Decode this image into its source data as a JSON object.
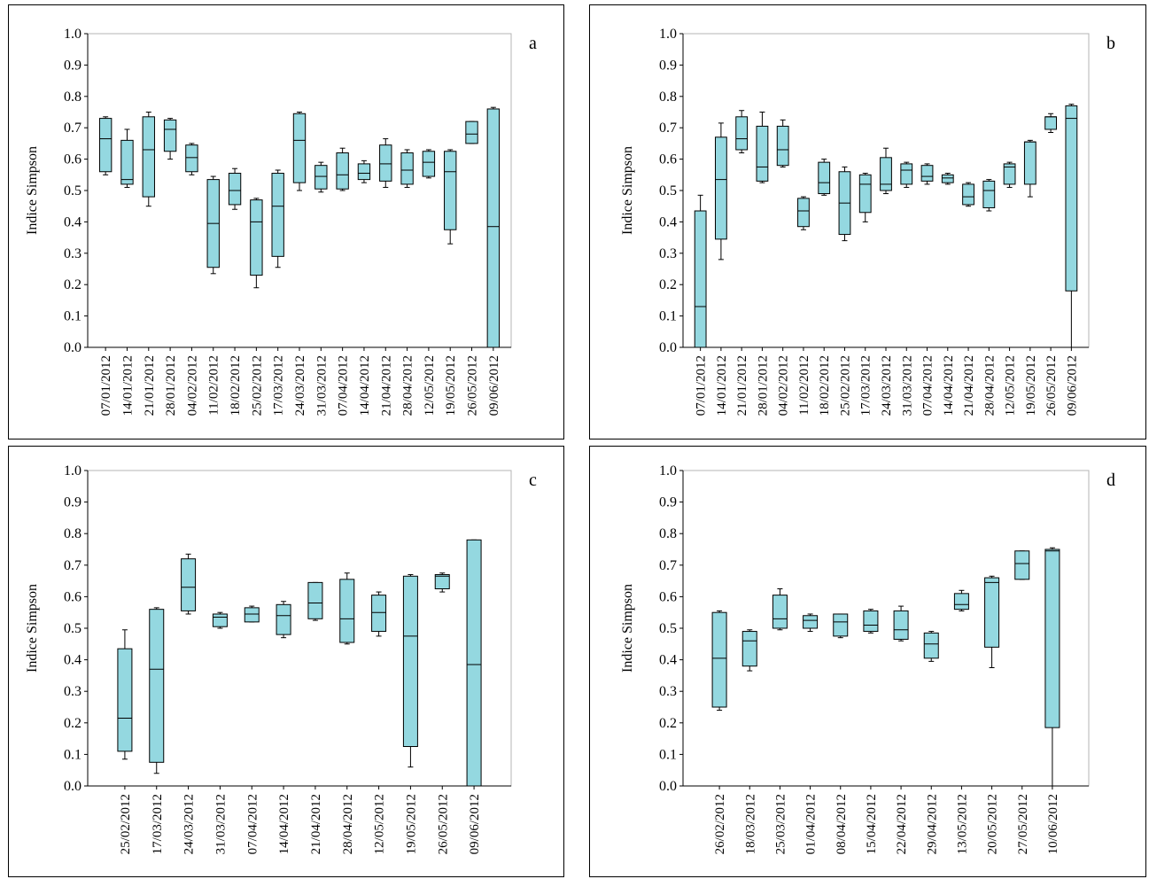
{
  "colors": {
    "box_fill": "#94d8e0",
    "box_stroke": "#000000",
    "frame": "#b4b4b4"
  },
  "chart_data": [
    {
      "type": "box",
      "panel_label": "a",
      "ylabel": "Indice Simpson",
      "ylim": [
        0,
        1
      ],
      "y_ticks": [
        "0.0",
        "0.1",
        "0.2",
        "0.3",
        "0.4",
        "0.5",
        "0.6",
        "0.7",
        "0.8",
        "0.9",
        "1.0"
      ],
      "grid": false,
      "categories": [
        "07/01/2012",
        "14/01/2012",
        "21/01/2012",
        "28/01/2012",
        "04/02/2012",
        "11/02/2012",
        "18/02/2012",
        "25/02/2012",
        "17/03/2012",
        "24/03/2012",
        "31/03/2012",
        "07/04/2012",
        "14/04/2012",
        "21/04/2012",
        "28/04/2012",
        "12/05/2012",
        "19/05/2012",
        "26/05/2012",
        "09/06/2012"
      ],
      "boxes": [
        {
          "min": 0.55,
          "q1": 0.56,
          "median": 0.665,
          "q3": 0.73,
          "max": 0.735
        },
        {
          "min": 0.51,
          "q1": 0.52,
          "median": 0.535,
          "q3": 0.66,
          "max": 0.695
        },
        {
          "min": 0.45,
          "q1": 0.48,
          "median": 0.63,
          "q3": 0.735,
          "max": 0.75
        },
        {
          "min": 0.6,
          "q1": 0.625,
          "median": 0.695,
          "q3": 0.725,
          "max": 0.73
        },
        {
          "min": 0.55,
          "q1": 0.56,
          "median": 0.605,
          "q3": 0.645,
          "max": 0.65
        },
        {
          "min": 0.235,
          "q1": 0.255,
          "median": 0.395,
          "q3": 0.535,
          "max": 0.545
        },
        {
          "min": 0.44,
          "q1": 0.455,
          "median": 0.5,
          "q3": 0.555,
          "max": 0.57
        },
        {
          "min": 0.19,
          "q1": 0.23,
          "median": 0.4,
          "q3": 0.47,
          "max": 0.475
        },
        {
          "min": 0.255,
          "q1": 0.29,
          "median": 0.45,
          "q3": 0.555,
          "max": 0.565
        },
        {
          "min": 0.5,
          "q1": 0.525,
          "median": 0.66,
          "q3": 0.745,
          "max": 0.75
        },
        {
          "min": 0.495,
          "q1": 0.505,
          "median": 0.545,
          "q3": 0.58,
          "max": 0.59
        },
        {
          "min": 0.5,
          "q1": 0.505,
          "median": 0.55,
          "q3": 0.62,
          "max": 0.635
        },
        {
          "min": 0.525,
          "q1": 0.535,
          "median": 0.555,
          "q3": 0.585,
          "max": 0.595
        },
        {
          "min": 0.51,
          "q1": 0.53,
          "median": 0.585,
          "q3": 0.645,
          "max": 0.665
        },
        {
          "min": 0.51,
          "q1": 0.52,
          "median": 0.565,
          "q3": 0.62,
          "max": 0.63
        },
        {
          "min": 0.54,
          "q1": 0.545,
          "median": 0.59,
          "q3": 0.625,
          "max": 0.63
        },
        {
          "min": 0.33,
          "q1": 0.375,
          "median": 0.56,
          "q3": 0.625,
          "max": 0.63
        },
        {
          "min": 0.65,
          "q1": 0.65,
          "median": 0.68,
          "q3": 0.72,
          "max": 0.72
        },
        {
          "min": 0.0,
          "q1": 0.0,
          "median": 0.385,
          "q3": 0.76,
          "max": 0.765
        }
      ]
    },
    {
      "type": "box",
      "panel_label": "b",
      "ylabel": "Indice Simpson",
      "ylim": [
        0,
        1
      ],
      "y_ticks": [
        "0.0",
        "0.1",
        "0.2",
        "0.3",
        "0.4",
        "0.5",
        "0.6",
        "0.7",
        "0.8",
        "0.9",
        "1.0"
      ],
      "grid": false,
      "categories": [
        "07/01/2012",
        "14/01/2012",
        "21/01/2012",
        "28/01/2012",
        "04/02/2012",
        "11/02/2012",
        "18/02/2012",
        "25/02/2012",
        "17/03/2012",
        "24/03/2012",
        "31/03/2012",
        "07/04/2012",
        "14/04/2012",
        "21/04/2012",
        "28/04/2012",
        "12/05/2012",
        "19/05/2012",
        "26/05/2012",
        "09/06/2012"
      ],
      "boxes": [
        {
          "min": 0.0,
          "q1": 0.0,
          "median": 0.13,
          "q3": 0.435,
          "max": 0.485
        },
        {
          "min": 0.28,
          "q1": 0.345,
          "median": 0.535,
          "q3": 0.67,
          "max": 0.715
        },
        {
          "min": 0.62,
          "q1": 0.63,
          "median": 0.665,
          "q3": 0.735,
          "max": 0.755
        },
        {
          "min": 0.525,
          "q1": 0.53,
          "median": 0.575,
          "q3": 0.705,
          "max": 0.75
        },
        {
          "min": 0.575,
          "q1": 0.58,
          "median": 0.63,
          "q3": 0.705,
          "max": 0.725
        },
        {
          "min": 0.375,
          "q1": 0.385,
          "median": 0.435,
          "q3": 0.475,
          "max": 0.48
        },
        {
          "min": 0.485,
          "q1": 0.49,
          "median": 0.525,
          "q3": 0.59,
          "max": 0.6
        },
        {
          "min": 0.34,
          "q1": 0.36,
          "median": 0.46,
          "q3": 0.56,
          "max": 0.575
        },
        {
          "min": 0.4,
          "q1": 0.43,
          "median": 0.52,
          "q3": 0.55,
          "max": 0.555
        },
        {
          "min": 0.49,
          "q1": 0.5,
          "median": 0.52,
          "q3": 0.605,
          "max": 0.635
        },
        {
          "min": 0.51,
          "q1": 0.52,
          "median": 0.565,
          "q3": 0.585,
          "max": 0.59
        },
        {
          "min": 0.52,
          "q1": 0.53,
          "median": 0.545,
          "q3": 0.58,
          "max": 0.585
        },
        {
          "min": 0.52,
          "q1": 0.525,
          "median": 0.54,
          "q3": 0.55,
          "max": 0.555
        },
        {
          "min": 0.45,
          "q1": 0.455,
          "median": 0.48,
          "q3": 0.52,
          "max": 0.525
        },
        {
          "min": 0.435,
          "q1": 0.445,
          "median": 0.5,
          "q3": 0.53,
          "max": 0.535
        },
        {
          "min": 0.51,
          "q1": 0.52,
          "median": 0.575,
          "q3": 0.585,
          "max": 0.59
        },
        {
          "min": 0.48,
          "q1": 0.52,
          "median": 0.655,
          "q3": 0.655,
          "max": 0.66
        },
        {
          "min": 0.685,
          "q1": 0.695,
          "median": 0.735,
          "q3": 0.735,
          "max": 0.745
        },
        {
          "min": 0.0,
          "q1": 0.18,
          "median": 0.73,
          "q3": 0.77,
          "max": 0.775
        }
      ]
    },
    {
      "type": "box",
      "panel_label": "c",
      "ylabel": "Indice Simpson",
      "ylim": [
        0,
        1
      ],
      "y_ticks": [
        "0.0",
        "0.1",
        "0.2",
        "0.3",
        "0.4",
        "0.5",
        "0.6",
        "0.7",
        "0.8",
        "0.9",
        "1.0"
      ],
      "grid": false,
      "categories": [
        "25/02/2012",
        "17/03/2012",
        "24/03/2012",
        "31/03/2012",
        "07/04/2012",
        "14/04/2012",
        "21/04/2012",
        "28/04/2012",
        "12/05/2012",
        "19/05/2012",
        "26/05/2012",
        "09/06/2012"
      ],
      "boxes": [
        {
          "min": 0.085,
          "q1": 0.11,
          "median": 0.215,
          "q3": 0.435,
          "max": 0.495
        },
        {
          "min": 0.04,
          "q1": 0.075,
          "median": 0.37,
          "q3": 0.56,
          "max": 0.565
        },
        {
          "min": 0.545,
          "q1": 0.555,
          "median": 0.63,
          "q3": 0.72,
          "max": 0.735
        },
        {
          "min": 0.5,
          "q1": 0.505,
          "median": 0.535,
          "q3": 0.545,
          "max": 0.55
        },
        {
          "min": 0.52,
          "q1": 0.52,
          "median": 0.545,
          "q3": 0.565,
          "max": 0.57
        },
        {
          "min": 0.47,
          "q1": 0.48,
          "median": 0.54,
          "q3": 0.575,
          "max": 0.585
        },
        {
          "min": 0.525,
          "q1": 0.53,
          "median": 0.58,
          "q3": 0.645,
          "max": 0.645
        },
        {
          "min": 0.45,
          "q1": 0.455,
          "median": 0.53,
          "q3": 0.655,
          "max": 0.675
        },
        {
          "min": 0.475,
          "q1": 0.49,
          "median": 0.55,
          "q3": 0.605,
          "max": 0.615
        },
        {
          "min": 0.06,
          "q1": 0.125,
          "median": 0.475,
          "q3": 0.665,
          "max": 0.67
        },
        {
          "min": 0.615,
          "q1": 0.625,
          "median": 0.665,
          "q3": 0.67,
          "max": 0.675
        },
        {
          "min": 0.0,
          "q1": 0.0,
          "median": 0.385,
          "q3": 0.78,
          "max": 0.78
        }
      ]
    },
    {
      "type": "box",
      "panel_label": "d",
      "ylabel": "Indice Simpson",
      "ylim": [
        0,
        1
      ],
      "y_ticks": [
        "0.0",
        "0.1",
        "0.2",
        "0.3",
        "0.4",
        "0.5",
        "0.6",
        "0.7",
        "0.8",
        "0.9",
        "1.0"
      ],
      "grid": false,
      "categories": [
        "26/02/2012",
        "18/03/2012",
        "25/03/2012",
        "01/04/2012",
        "08/04/2012",
        "15/04/2012",
        "22/04/2012",
        "29/04/2012",
        "13/05/2012",
        "20/05/2012",
        "27/05/2012",
        "10/06/2012"
      ],
      "boxes": [
        {
          "min": 0.24,
          "q1": 0.25,
          "median": 0.405,
          "q3": 0.55,
          "max": 0.555
        },
        {
          "min": 0.365,
          "q1": 0.38,
          "median": 0.46,
          "q3": 0.49,
          "max": 0.495
        },
        {
          "min": 0.495,
          "q1": 0.5,
          "median": 0.53,
          "q3": 0.605,
          "max": 0.625
        },
        {
          "min": 0.49,
          "q1": 0.5,
          "median": 0.525,
          "q3": 0.54,
          "max": 0.545
        },
        {
          "min": 0.47,
          "q1": 0.475,
          "median": 0.52,
          "q3": 0.545,
          "max": 0.545
        },
        {
          "min": 0.485,
          "q1": 0.49,
          "median": 0.51,
          "q3": 0.555,
          "max": 0.56
        },
        {
          "min": 0.46,
          "q1": 0.465,
          "median": 0.495,
          "q3": 0.555,
          "max": 0.57
        },
        {
          "min": 0.395,
          "q1": 0.405,
          "median": 0.45,
          "q3": 0.485,
          "max": 0.49
        },
        {
          "min": 0.555,
          "q1": 0.56,
          "median": 0.575,
          "q3": 0.61,
          "max": 0.62
        },
        {
          "min": 0.375,
          "q1": 0.44,
          "median": 0.645,
          "q3": 0.66,
          "max": 0.665
        },
        {
          "min": 0.655,
          "q1": 0.655,
          "median": 0.705,
          "q3": 0.745,
          "max": 0.745
        },
        {
          "min": 0.0,
          "q1": 0.185,
          "median": 0.745,
          "q3": 0.75,
          "max": 0.755
        }
      ]
    }
  ]
}
